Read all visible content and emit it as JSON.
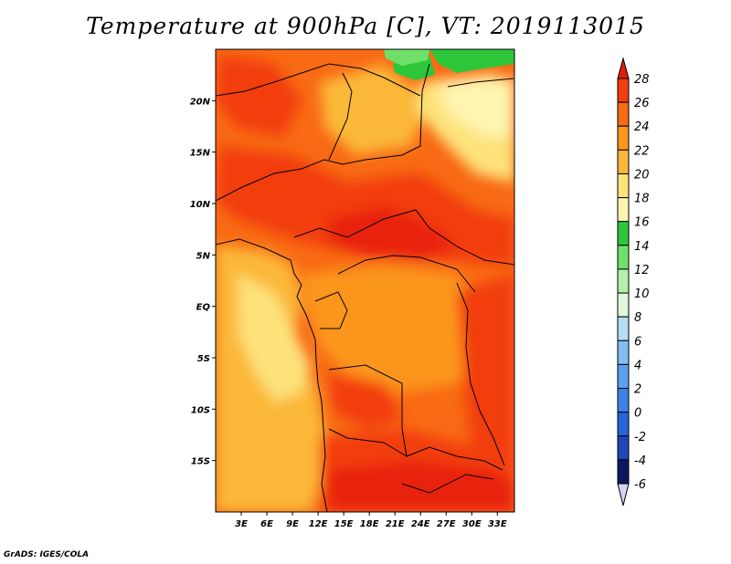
{
  "title": "Temperature at 900hPa [C], VT: 2019113015",
  "credit": "GrADS: IGES/COLA",
  "map": {
    "lon_range": [
      0,
      35
    ],
    "lat_range": [
      -20,
      25
    ],
    "lat_ticks": [
      {
        "value": 20,
        "label": "20N"
      },
      {
        "value": 15,
        "label": "15N"
      },
      {
        "value": 10,
        "label": "10N"
      },
      {
        "value": 5,
        "label": "5N"
      },
      {
        "value": 0,
        "label": "EQ"
      },
      {
        "value": -5,
        "label": "5S"
      },
      {
        "value": -10,
        "label": "10S"
      },
      {
        "value": -15,
        "label": "15S"
      }
    ],
    "lon_ticks": [
      {
        "value": 3,
        "label": "3E"
      },
      {
        "value": 6,
        "label": "6E"
      },
      {
        "value": 9,
        "label": "9E"
      },
      {
        "value": 12,
        "label": "12E"
      },
      {
        "value": 15,
        "label": "15E"
      },
      {
        "value": 18,
        "label": "18E"
      },
      {
        "value": 21,
        "label": "21E"
      },
      {
        "value": 24,
        "label": "24E"
      },
      {
        "value": 27,
        "label": "27E"
      },
      {
        "value": 30,
        "label": "30E"
      },
      {
        "value": 33,
        "label": "33E"
      }
    ]
  },
  "colorbar": {
    "levels": [
      {
        "label": "28",
        "color": "#e8220c"
      },
      {
        "label": "26",
        "color": "#f23e10"
      },
      {
        "label": "24",
        "color": "#f86a14"
      },
      {
        "label": "22",
        "color": "#fb961c"
      },
      {
        "label": "20",
        "color": "#fbb838"
      },
      {
        "label": "18",
        "color": "#fde27a"
      },
      {
        "label": "16",
        "color": "#fff4b0"
      },
      {
        "label": "14",
        "color": "#2ec63a"
      },
      {
        "label": "12",
        "color": "#6ee06a"
      },
      {
        "label": "10",
        "color": "#b4f0a8"
      },
      {
        "label": "8",
        "color": "#dff8dc"
      },
      {
        "label": "6",
        "color": "#b6dcf6"
      },
      {
        "label": "4",
        "color": "#82bef0"
      },
      {
        "label": "2",
        "color": "#5aa0ec"
      },
      {
        "label": "0",
        "color": "#3c82e6"
      },
      {
        "label": "-2",
        "color": "#2664d8"
      },
      {
        "label": "-4",
        "color": "#1e46b6"
      },
      {
        "label": "-6",
        "color": "#162c94"
      }
    ],
    "top_color": "#e01e0c",
    "bottom_color": "#d8d4f4",
    "bottom_band_color": "#0e1660"
  }
}
